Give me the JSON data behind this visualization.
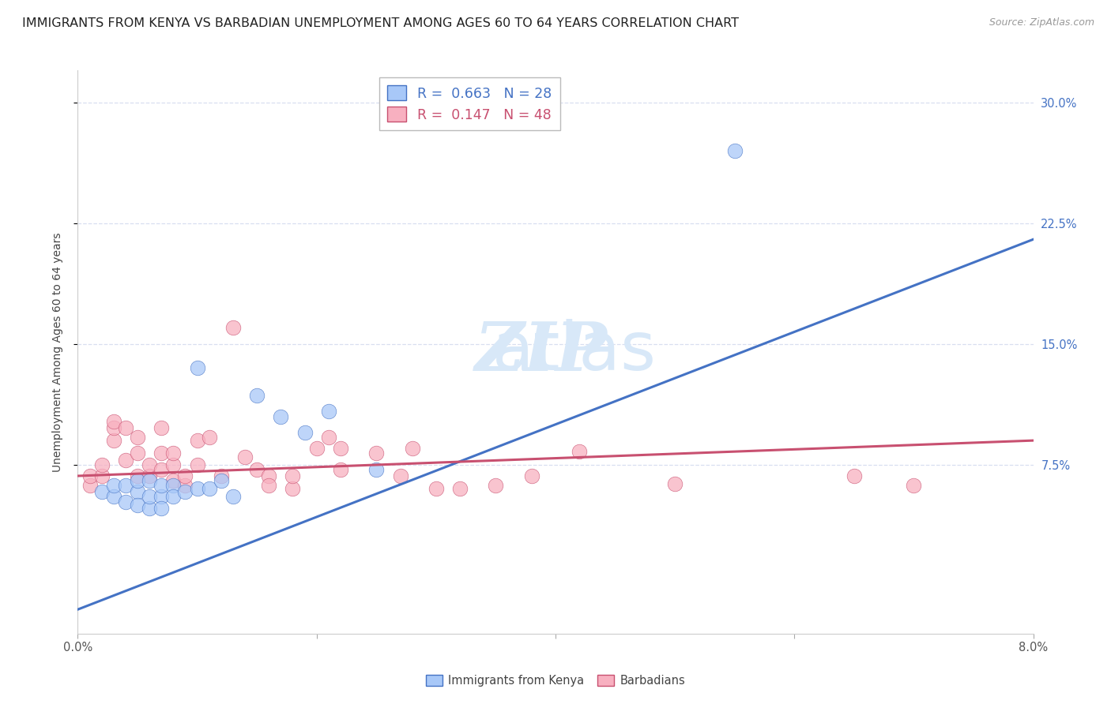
{
  "title": "IMMIGRANTS FROM KENYA VS BARBADIAN UNEMPLOYMENT AMONG AGES 60 TO 64 YEARS CORRELATION CHART",
  "source": "Source: ZipAtlas.com",
  "ylabel": "Unemployment Among Ages 60 to 64 years",
  "xlim": [
    0.0,
    0.08
  ],
  "ylim": [
    -0.03,
    0.32
  ],
  "yticks": [
    0.075,
    0.15,
    0.225,
    0.3
  ],
  "ytick_labels": [
    "7.5%",
    "15.0%",
    "22.5%",
    "30.0%"
  ],
  "xticks": [
    0.0,
    0.02,
    0.04,
    0.06,
    0.08
  ],
  "xtick_labels": [
    "0.0%",
    "",
    "",
    "",
    "8.0%"
  ],
  "legend1_R": "0.663",
  "legend1_N": "28",
  "legend2_R": "0.147",
  "legend2_N": "48",
  "legend1_label": "Immigrants from Kenya",
  "legend2_label": "Barbadians",
  "scatter1_color": "#a8c8f8",
  "scatter2_color": "#f8b0c0",
  "line1_color": "#4472c4",
  "line2_color": "#c85070",
  "watermark_top": "ZIP",
  "watermark_bottom": "atlas",
  "watermark_color": "#d8e8f8",
  "blue_scatter_x": [
    0.002,
    0.003,
    0.003,
    0.004,
    0.004,
    0.005,
    0.005,
    0.005,
    0.006,
    0.006,
    0.006,
    0.007,
    0.007,
    0.007,
    0.008,
    0.008,
    0.009,
    0.01,
    0.01,
    0.011,
    0.012,
    0.013,
    0.015,
    0.017,
    0.019,
    0.021,
    0.025,
    0.055
  ],
  "blue_scatter_y": [
    0.058,
    0.055,
    0.062,
    0.052,
    0.062,
    0.058,
    0.05,
    0.065,
    0.048,
    0.055,
    0.065,
    0.055,
    0.062,
    0.048,
    0.062,
    0.055,
    0.058,
    0.135,
    0.06,
    0.06,
    0.065,
    0.055,
    0.118,
    0.105,
    0.095,
    0.108,
    0.072,
    0.27
  ],
  "pink_scatter_x": [
    0.001,
    0.001,
    0.002,
    0.002,
    0.003,
    0.003,
    0.003,
    0.004,
    0.004,
    0.005,
    0.005,
    0.005,
    0.006,
    0.006,
    0.007,
    0.007,
    0.007,
    0.008,
    0.008,
    0.008,
    0.009,
    0.009,
    0.01,
    0.01,
    0.011,
    0.012,
    0.013,
    0.014,
    0.015,
    0.016,
    0.016,
    0.018,
    0.018,
    0.02,
    0.021,
    0.022,
    0.022,
    0.025,
    0.027,
    0.028,
    0.03,
    0.032,
    0.035,
    0.038,
    0.042,
    0.05,
    0.065,
    0.07
  ],
  "pink_scatter_y": [
    0.062,
    0.068,
    0.068,
    0.075,
    0.09,
    0.098,
    0.102,
    0.078,
    0.098,
    0.068,
    0.082,
    0.092,
    0.068,
    0.075,
    0.072,
    0.082,
    0.098,
    0.065,
    0.075,
    0.082,
    0.062,
    0.068,
    0.075,
    0.09,
    0.092,
    0.068,
    0.16,
    0.08,
    0.072,
    0.068,
    0.062,
    0.06,
    0.068,
    0.085,
    0.092,
    0.072,
    0.085,
    0.082,
    0.068,
    0.085,
    0.06,
    0.06,
    0.062,
    0.068,
    0.083,
    0.063,
    0.068,
    0.062
  ],
  "blue_line_x": [
    0.0,
    0.08
  ],
  "blue_line_y": [
    -0.015,
    0.215
  ],
  "pink_line_x": [
    0.0,
    0.08
  ],
  "pink_line_y": [
    0.068,
    0.09
  ],
  "grid_color": "#d8dff0",
  "title_fontsize": 11.5,
  "ylabel_fontsize": 10,
  "tick_fontsize": 10.5,
  "legend_fontsize": 12.5
}
